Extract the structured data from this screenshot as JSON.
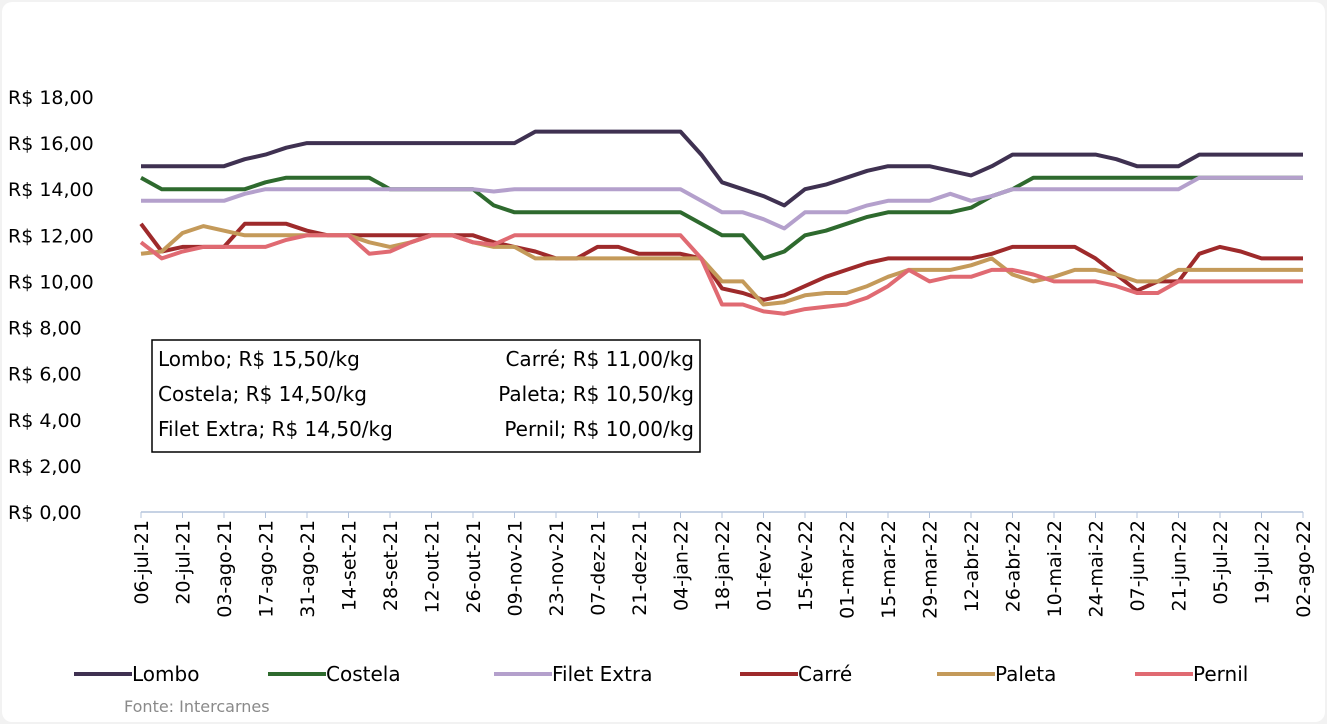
{
  "chart_data": {
    "type": "line",
    "categories": [
      "06-jul-21",
      null,
      "20-jul-21",
      null,
      "03-ago-21",
      null,
      "17-ago-21",
      null,
      "31-ago-21",
      null,
      "14-set-21",
      null,
      "28-set-21",
      null,
      "12-out-21",
      null,
      "26-out-21",
      null,
      "09-nov-21",
      null,
      "23-nov-21",
      null,
      "07-dez-21",
      null,
      "21-dez-21",
      null,
      "04-jan-22",
      null,
      "18-jan-22",
      null,
      "01-fev-22",
      null,
      "15-fev-22",
      null,
      "01-mar-22",
      null,
      "15-mar-22",
      null,
      "29-mar-22",
      null,
      "12-abr-22",
      null,
      "26-abr-22",
      null,
      "10-mai-22",
      null,
      "24-mai-22",
      null,
      "07-jun-22",
      null,
      "21-jun-22",
      null,
      "05-jul-22",
      null,
      "19-jul-22",
      null,
      "02-ago-22"
    ],
    "series": [
      {
        "name": "Lombo",
        "color": "#3f3151",
        "values": [
          15,
          15,
          15,
          15,
          15,
          15.3,
          15.5,
          15.8,
          16,
          16,
          16,
          16,
          16,
          16,
          16,
          16,
          16,
          16,
          16,
          16.5,
          16.5,
          16.5,
          16.5,
          16.5,
          16.5,
          16.5,
          16.5,
          15.5,
          14.3,
          14,
          13.7,
          13.3,
          14,
          14.2,
          14.5,
          14.8,
          15,
          15,
          15,
          14.8,
          14.6,
          15,
          15.5,
          15.5,
          15.5,
          15.5,
          15.5,
          15.3,
          15,
          15,
          15,
          15.5,
          15.5,
          15.5,
          15.5,
          15.5,
          15.5
        ]
      },
      {
        "name": "Costela",
        "color": "#2e6a2e",
        "values": [
          14.5,
          14,
          14,
          14,
          14,
          14,
          14.3,
          14.5,
          14.5,
          14.5,
          14.5,
          14.5,
          14,
          14,
          14,
          14,
          14,
          13.3,
          13,
          13,
          13,
          13,
          13,
          13,
          13,
          13,
          13,
          12.5,
          12,
          12,
          11,
          11.3,
          12,
          12.2,
          12.5,
          12.8,
          13,
          13,
          13,
          13,
          13.2,
          13.7,
          14,
          14.5,
          14.5,
          14.5,
          14.5,
          14.5,
          14.5,
          14.5,
          14.5,
          14.5,
          14.5,
          14.5,
          14.5,
          14.5,
          14.5
        ]
      },
      {
        "name": "Filet Extra",
        "color": "#b4a0cc",
        "values": [
          13.5,
          13.5,
          13.5,
          13.5,
          13.5,
          13.8,
          14,
          14,
          14,
          14,
          14,
          14,
          14,
          14,
          14,
          14,
          14,
          13.9,
          14,
          14,
          14,
          14,
          14,
          14,
          14,
          14,
          14,
          13.5,
          13,
          13,
          12.7,
          12.3,
          13,
          13,
          13,
          13.3,
          13.5,
          13.5,
          13.5,
          13.8,
          13.5,
          13.7,
          14,
          14,
          14,
          14,
          14,
          14,
          14,
          14,
          14,
          14.5,
          14.5,
          14.5,
          14.5,
          14.5,
          14.5
        ]
      },
      {
        "name": "Carré",
        "color": "#9e2a2b",
        "values": [
          12.5,
          11.3,
          11.5,
          11.5,
          11.5,
          12.5,
          12.5,
          12.5,
          12.2,
          12,
          12,
          12,
          12,
          12,
          12,
          12,
          12,
          11.7,
          11.5,
          11.3,
          11,
          11,
          11.5,
          11.5,
          11.2,
          11.2,
          11.2,
          11,
          9.7,
          9.5,
          9.2,
          9.4,
          9.8,
          10.2,
          10.5,
          10.8,
          11,
          11,
          11,
          11,
          11,
          11.2,
          11.5,
          11.5,
          11.5,
          11.5,
          11,
          10.3,
          9.6,
          10,
          10,
          11.2,
          11.5,
          11.3,
          11,
          11,
          11
        ]
      },
      {
        "name": "Paleta",
        "color": "#c49a5a",
        "values": [
          11.2,
          11.3,
          12.1,
          12.4,
          12.2,
          12,
          12,
          12,
          12,
          12,
          12,
          11.7,
          11.5,
          11.7,
          12,
          12,
          11.7,
          11.5,
          11.5,
          11,
          11,
          11,
          11,
          11,
          11,
          11,
          11,
          11,
          10,
          10,
          9,
          9.1,
          9.4,
          9.5,
          9.5,
          9.8,
          10.2,
          10.5,
          10.5,
          10.5,
          10.7,
          11,
          10.3,
          10,
          10.2,
          10.5,
          10.5,
          10.3,
          10,
          10,
          10.5,
          10.5,
          10.5,
          10.5,
          10.5,
          10.5,
          10.5
        ]
      },
      {
        "name": "Pernil",
        "color": "#e06a72",
        "values": [
          11.7,
          11,
          11.3,
          11.5,
          11.5,
          11.5,
          11.5,
          11.8,
          12,
          12,
          12,
          11.2,
          11.3,
          11.7,
          12,
          12,
          11.7,
          11.6,
          12,
          12,
          12,
          12,
          12,
          12,
          12,
          12,
          12,
          11,
          9,
          9,
          8.7,
          8.6,
          8.8,
          8.9,
          9,
          9.3,
          9.8,
          10.5,
          10,
          10.2,
          10.2,
          10.5,
          10.5,
          10.3,
          10,
          10,
          10,
          9.8,
          9.5,
          9.5,
          10,
          10,
          10,
          10,
          10,
          10,
          10
        ]
      }
    ],
    "ylim": [
      0,
      18
    ],
    "yticks": [
      {
        "value": 0,
        "label": "R$ 0,00"
      },
      {
        "value": 2,
        "label": "R$ 2,00"
      },
      {
        "value": 4,
        "label": "R$ 4,00"
      },
      {
        "value": 6,
        "label": "R$ 6,00"
      },
      {
        "value": 8,
        "label": "R$ 8,00"
      },
      {
        "value": 10,
        "label": "R$ 10,00"
      },
      {
        "value": 12,
        "label": "R$ 12,00"
      },
      {
        "value": 14,
        "label": "R$ 14,00"
      },
      {
        "value": 16,
        "label": "R$ 16,00"
      },
      {
        "value": 18,
        "label": "R$ 18,00"
      }
    ],
    "grid": false,
    "annotations": [
      "Lombo; R$ 15,50/kg",
      "Costela; R$ 14,50/kg",
      "Filet Extra; R$ 14,50/kg",
      "Carré; R$ 11,00/kg",
      "Paleta; R$ 10,50/kg",
      "Pernil; R$ 10,00/kg"
    ],
    "source": "Fonte: Intercarnes"
  }
}
